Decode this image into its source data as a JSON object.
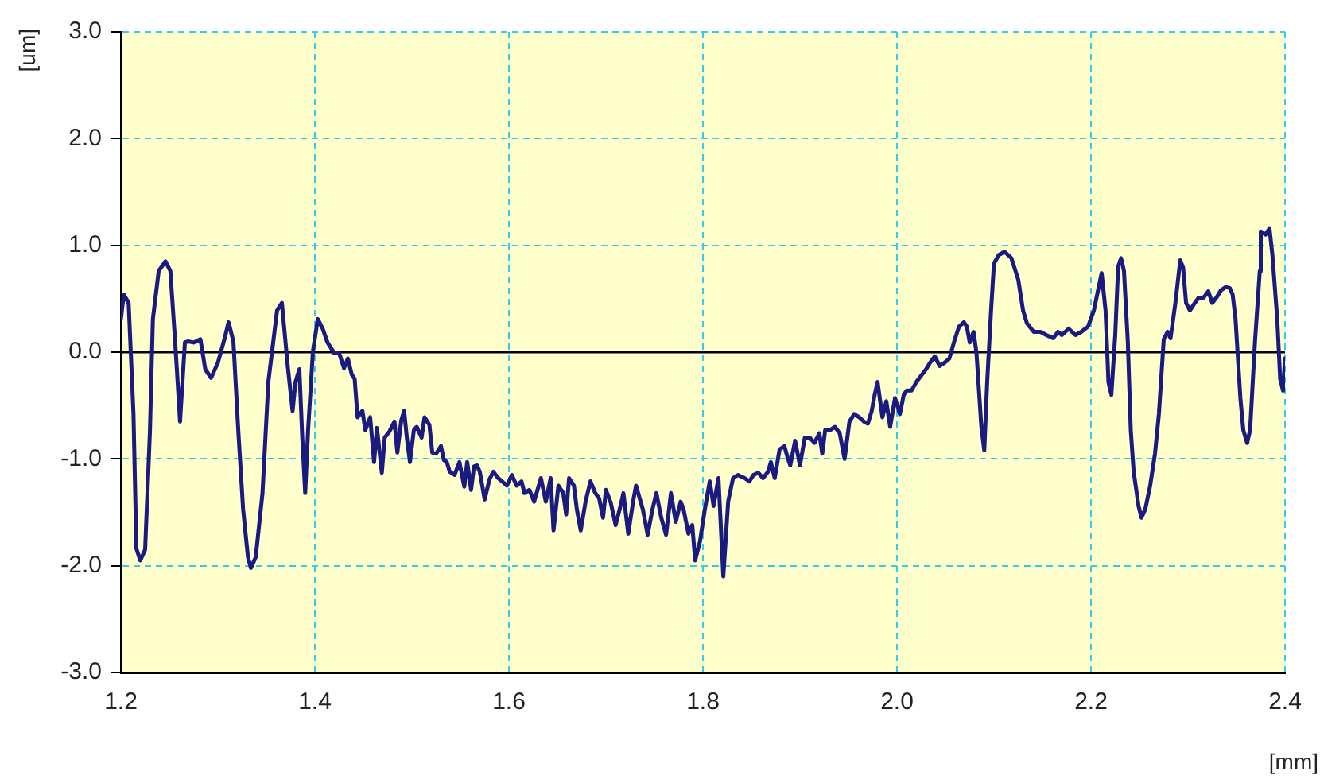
{
  "chart_data": {
    "type": "line",
    "xlabel": "[mm]",
    "ylabel": "[um]",
    "xlim": [
      1.2,
      2.4
    ],
    "xticks": [
      1.2,
      1.4,
      1.6,
      1.8,
      {
        "value": 2,
        "label": "2.0"
      },
      2.2,
      2.4
    ],
    "ylim": [
      -3,
      3
    ],
    "yticks": [
      {
        "value": -3,
        "label": "-3.0"
      },
      {
        "value": -2,
        "label": "-2.0"
      },
      {
        "value": -1,
        "label": "-1.0"
      },
      {
        "value": 0,
        "label": "0.0"
      },
      {
        "value": 1,
        "label": "1.0"
      },
      {
        "value": 2,
        "label": "2.0"
      },
      {
        "value": 3,
        "label": "3.0"
      }
    ],
    "grid": true,
    "legend": false,
    "marker": "none",
    "line_style": "solid",
    "ref_lines": [
      {
        "axis": "y",
        "value": 0,
        "color": "#000000"
      }
    ],
    "series": [
      {
        "color": "#1a1a80",
        "x": [
          1.2,
          1.203,
          1.208,
          1.213,
          1.216,
          1.22,
          1.225,
          1.23,
          1.233,
          1.239,
          1.246,
          1.251,
          1.256,
          1.261,
          1.266,
          1.269,
          1.275,
          1.282,
          1.287,
          1.293,
          1.3,
          1.307,
          1.311,
          1.316,
          1.321,
          1.326,
          1.331,
          1.334,
          1.339,
          1.346,
          1.352,
          1.361,
          1.366,
          1.372,
          1.377,
          1.38,
          1.384,
          1.387,
          1.39,
          1.393,
          1.398,
          1.403,
          1.408,
          1.413,
          1.42,
          1.425,
          1.43,
          1.434,
          1.438,
          1.441,
          1.444,
          1.449,
          1.452,
          1.457,
          1.461,
          1.464,
          1.469,
          1.472,
          1.477,
          1.482,
          1.485,
          1.489,
          1.492,
          1.495,
          1.498,
          1.502,
          1.505,
          1.51,
          1.513,
          1.518,
          1.521,
          1.525,
          1.53,
          1.533,
          1.536,
          1.539,
          1.544,
          1.549,
          1.554,
          1.557,
          1.561,
          1.564,
          1.567,
          1.57,
          1.575,
          1.58,
          1.584,
          1.589,
          1.593,
          1.598,
          1.603,
          1.608,
          1.613,
          1.616,
          1.621,
          1.626,
          1.633,
          1.638,
          1.643,
          1.646,
          1.651,
          1.656,
          1.659,
          1.662,
          1.667,
          1.67,
          1.674,
          1.679,
          1.684,
          1.689,
          1.693,
          1.697,
          1.7,
          1.705,
          1.71,
          1.715,
          1.718,
          1.723,
          1.728,
          1.731,
          1.738,
          1.743,
          1.748,
          1.752,
          1.757,
          1.762,
          1.767,
          1.772,
          1.777,
          1.78,
          1.785,
          1.789,
          1.792,
          1.797,
          1.802,
          1.807,
          1.811,
          1.816,
          1.821,
          1.826,
          1.831,
          1.836,
          1.843,
          1.848,
          1.852,
          1.857,
          1.862,
          1.867,
          1.87,
          1.874,
          1.879,
          1.884,
          1.887,
          1.89,
          1.895,
          1.9,
          1.905,
          1.91,
          1.915,
          1.92,
          1.923,
          1.926,
          1.931,
          1.936,
          1.941,
          1.946,
          1.951,
          1.956,
          1.961,
          1.966,
          1.97,
          1.974,
          1.977,
          1.98,
          1.985,
          1.989,
          1.993,
          1.998,
          2.003,
          2.007,
          2.01,
          2.015,
          2.02,
          2.025,
          2.03,
          2.034,
          2.039,
          2.044,
          2.049,
          2.054,
          2.059,
          2.064,
          2.069,
          2.072,
          2.075,
          2.079,
          2.082,
          2.087,
          2.09,
          2.093,
          2.097,
          2.1,
          2.105,
          2.111,
          2.118,
          2.125,
          2.13,
          2.134,
          2.141,
          2.148,
          2.154,
          2.161,
          2.166,
          2.17,
          2.177,
          2.184,
          2.19,
          2.197,
          2.203,
          2.208,
          2.211,
          2.215,
          2.218,
          2.221,
          2.225,
          2.228,
          2.231,
          2.234,
          2.238,
          2.241,
          2.244,
          2.249,
          2.252,
          2.256,
          2.261,
          2.266,
          2.27,
          2.275,
          2.279,
          2.282,
          2.287,
          2.292,
          2.295,
          2.298,
          2.302,
          2.307,
          2.311,
          2.316,
          2.321,
          2.325,
          2.33,
          2.334,
          2.339,
          2.343,
          2.346,
          2.349,
          2.354,
          2.357,
          2.361,
          2.364,
          2.369,
          2.374,
          2.375,
          2.38,
          2.384,
          2.387,
          2.392,
          2.395,
          2.398,
          2.4
        ],
        "values": [
          0.31,
          0.54,
          0.46,
          -0.58,
          -1.84,
          -1.95,
          -1.85,
          -0.73,
          0.31,
          0.76,
          0.85,
          0.76,
          0.09,
          -0.65,
          0.09,
          0.1,
          0.09,
          0.12,
          -0.16,
          -0.24,
          -0.1,
          0.13,
          0.28,
          0.1,
          -0.73,
          -1.47,
          -1.92,
          -2.02,
          -1.92,
          -1.32,
          -0.28,
          0.39,
          0.46,
          -0.13,
          -0.55,
          -0.28,
          -0.16,
          -0.8,
          -1.32,
          -0.73,
          0.01,
          0.31,
          0.22,
          0.09,
          -0.01,
          -0.01,
          -0.15,
          -0.06,
          -0.21,
          -0.25,
          -0.61,
          -0.55,
          -0.73,
          -0.61,
          -1.03,
          -0.71,
          -1.13,
          -0.8,
          -0.74,
          -0.65,
          -0.94,
          -0.64,
          -0.55,
          -0.82,
          -1.03,
          -0.73,
          -0.7,
          -0.8,
          -0.61,
          -0.68,
          -0.94,
          -0.95,
          -0.88,
          -1.01,
          -1.03,
          -1.12,
          -1.15,
          -1.03,
          -1.26,
          -1.03,
          -1.29,
          -1.07,
          -1.06,
          -1.12,
          -1.38,
          -1.19,
          -1.12,
          -1.18,
          -1.21,
          -1.25,
          -1.15,
          -1.25,
          -1.21,
          -1.32,
          -1.29,
          -1.4,
          -1.18,
          -1.4,
          -1.18,
          -1.67,
          -1.25,
          -1.32,
          -1.52,
          -1.18,
          -1.25,
          -1.47,
          -1.67,
          -1.4,
          -1.21,
          -1.32,
          -1.37,
          -1.55,
          -1.29,
          -1.41,
          -1.62,
          -1.44,
          -1.32,
          -1.7,
          -1.4,
          -1.25,
          -1.47,
          -1.71,
          -1.47,
          -1.32,
          -1.55,
          -1.71,
          -1.32,
          -1.59,
          -1.4,
          -1.47,
          -1.7,
          -1.62,
          -1.95,
          -1.77,
          -1.47,
          -1.21,
          -1.44,
          -1.18,
          -2.1,
          -1.4,
          -1.18,
          -1.15,
          -1.18,
          -1.21,
          -1.15,
          -1.13,
          -1.18,
          -1.12,
          -1.03,
          -1.18,
          -0.91,
          -0.88,
          -0.98,
          -1.06,
          -0.83,
          -1.06,
          -0.8,
          -0.8,
          -0.85,
          -0.76,
          -0.95,
          -0.73,
          -0.73,
          -0.7,
          -0.76,
          -1.0,
          -0.65,
          -0.58,
          -0.61,
          -0.65,
          -0.67,
          -0.55,
          -0.4,
          -0.28,
          -0.61,
          -0.46,
          -0.7,
          -0.43,
          -0.58,
          -0.4,
          -0.36,
          -0.36,
          -0.28,
          -0.22,
          -0.16,
          -0.1,
          -0.04,
          -0.13,
          -0.1,
          -0.06,
          0.1,
          0.24,
          0.28,
          0.24,
          0.09,
          0.19,
          -0.01,
          -0.7,
          -0.92,
          -0.28,
          0.39,
          0.83,
          0.91,
          0.94,
          0.88,
          0.68,
          0.39,
          0.27,
          0.19,
          0.19,
          0.16,
          0.13,
          0.19,
          0.16,
          0.22,
          0.16,
          0.19,
          0.24,
          0.39,
          0.61,
          0.74,
          0.39,
          -0.28,
          -0.4,
          0.16,
          0.8,
          0.88,
          0.76,
          0.09,
          -0.73,
          -1.12,
          -1.44,
          -1.55,
          -1.47,
          -1.25,
          -0.95,
          -0.58,
          0.12,
          0.19,
          0.13,
          0.46,
          0.86,
          0.79,
          0.46,
          0.39,
          0.46,
          0.51,
          0.51,
          0.57,
          0.46,
          0.52,
          0.58,
          0.61,
          0.6,
          0.54,
          0.31,
          -0.43,
          -0.73,
          -0.85,
          -0.73,
          0.09,
          0.76,
          1.13,
          1.1,
          1.16,
          0.91,
          0.31,
          -0.25,
          -0.36,
          -0.06
        ]
      }
    ]
  }
}
